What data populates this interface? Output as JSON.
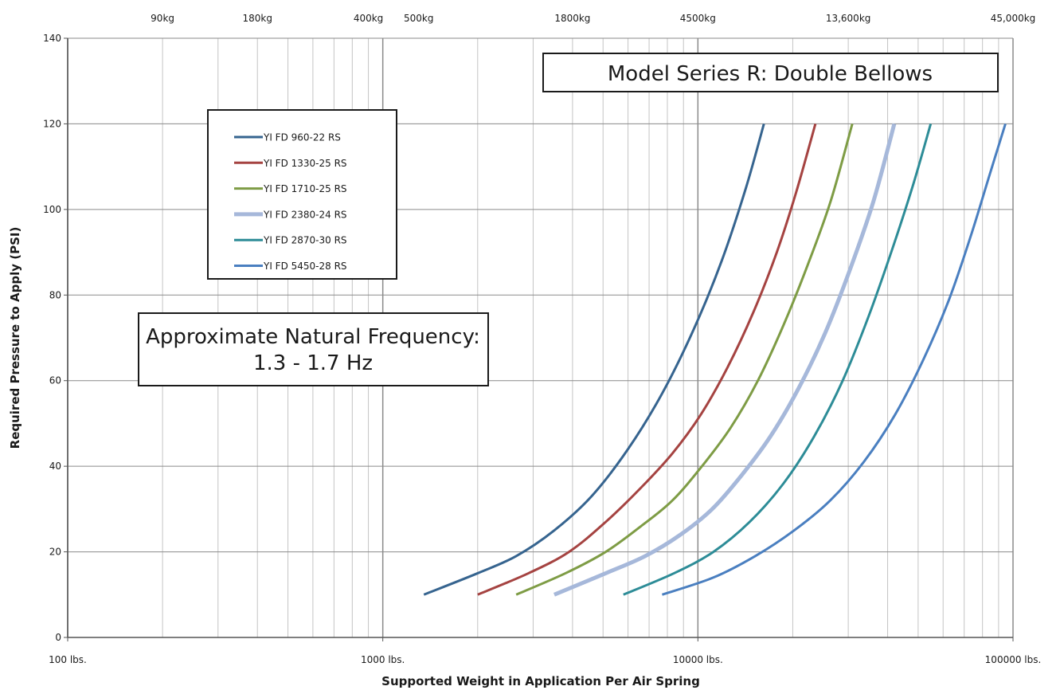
{
  "chart_data": {
    "type": "line",
    "title": "Model Series R: Double Bellows",
    "note": [
      "Approximate Natural Frequency:",
      "1.3 - 1.7 Hz"
    ],
    "xlabel": "Supported Weight in Application Per Air Spring",
    "ylabel": "Required Pressure to Apply (PSI)",
    "x_scale": "log",
    "xlim": [
      100,
      100000
    ],
    "ylim": [
      0,
      140
    ],
    "grid": true,
    "legend_position": "upper-left",
    "x_tick_labels": [
      {
        "value": 100,
        "label": "100 lbs."
      },
      {
        "value": 1000,
        "label": "1000 lbs."
      },
      {
        "value": 10000,
        "label": "10000 lbs."
      },
      {
        "value": 100000,
        "label": "100000 lbs."
      }
    ],
    "y_ticks": [
      0,
      20,
      40,
      60,
      80,
      100,
      120,
      140
    ],
    "top_axis_labels": [
      {
        "value": 200,
        "label": "90kg"
      },
      {
        "value": 400,
        "label": "180kg"
      },
      {
        "value": 900,
        "label": "400kg"
      },
      {
        "value": 1300,
        "label": "500kg"
      },
      {
        "value": 4000,
        "label": "1800kg"
      },
      {
        "value": 10000,
        "label": "4500kg"
      },
      {
        "value": 30000,
        "label": "13,600kg"
      },
      {
        "value": 100000,
        "label": "45,000kg"
      }
    ],
    "series": [
      {
        "name": "YI FD 960-22 RS",
        "color": "#36648f",
        "width": 3,
        "x": [
          1350,
          2000,
          2650,
          3500,
          4600,
          6000,
          7700,
          9700,
          11900,
          14200,
          16200
        ],
        "y": [
          10,
          15,
          19,
          25,
          33,
          44,
          57,
          72,
          88,
          105,
          120
        ]
      },
      {
        "name": "YI FD 1330-25 RS",
        "color": "#a54341",
        "width": 3,
        "x": [
          2000,
          2900,
          3900,
          5100,
          6600,
          8300,
          10200,
          12400,
          15000,
          17800,
          20500,
          23600
        ],
        "y": [
          10,
          15,
          20,
          27,
          35,
          43,
          52,
          63,
          76,
          90,
          104,
          120
        ]
      },
      {
        "name": "YI FD 1710-25 RS",
        "color": "#7e9c45",
        "width": 3,
        "x": [
          2650,
          3800,
          5100,
          6600,
          8300,
          10300,
          12700,
          15500,
          18700,
          22300,
          26400,
          30900
        ],
        "y": [
          10,
          15,
          20,
          26,
          32,
          40,
          49,
          60,
          73,
          87,
          102,
          120
        ]
      },
      {
        "name": "YI FD 2380-24 RS",
        "color": "#a6b8da",
        "width": 5,
        "x": [
          3500,
          5100,
          6800,
          8800,
          11100,
          13800,
          17000,
          20800,
          25300,
          30400,
          36100,
          42000
        ],
        "y": [
          10,
          15,
          19,
          24,
          30,
          38,
          47,
          58,
          71,
          86,
          102,
          120
        ]
      },
      {
        "name": "YI FD 2870-30 RS",
        "color": "#2d8c97",
        "width": 3,
        "x": [
          5800,
          8400,
          11200,
          14600,
          18700,
          23400,
          28800,
          34800,
          41500,
          48300,
          54800
        ],
        "y": [
          10,
          15,
          20,
          27,
          36,
          47,
          60,
          75,
          91,
          106,
          120
        ]
      },
      {
        "name": "YI FD 5450-28 RS",
        "color": "#4a7fc0",
        "width": 3,
        "x": [
          7700,
          11200,
          15200,
          20200,
          26300,
          33600,
          42200,
          52000,
          62700,
          73600,
          84200,
          94600
        ],
        "y": [
          10,
          14,
          19,
          25,
          32,
          41,
          52,
          65,
          79,
          94,
          108,
          120
        ]
      }
    ]
  }
}
